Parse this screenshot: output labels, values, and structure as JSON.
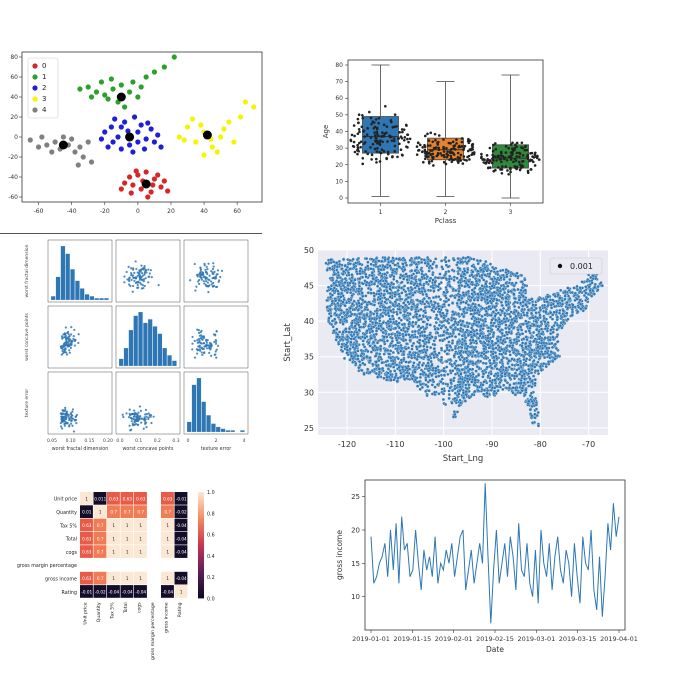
{
  "chart_data": [
    {
      "type": "scatter",
      "panel": "kmeans-clusters",
      "xlim": [
        -70,
        75
      ],
      "ylim": [
        -65,
        85
      ],
      "xticks": [
        -60,
        -40,
        -20,
        0,
        20,
        40,
        60
      ],
      "yticks": [
        -60,
        -40,
        -20,
        0,
        20,
        40,
        60,
        80
      ],
      "xtick_labels": [
        "-60",
        "-40",
        "-20",
        "0",
        "20",
        "40",
        "60"
      ],
      "ytick_labels": [
        "-60",
        "-40",
        "-20",
        "0",
        "20",
        "40",
        "60",
        "80"
      ],
      "legend_position": "top-left",
      "series": [
        {
          "name": "0",
          "color": "#d62728",
          "center": [
            5,
            -47
          ],
          "points": [
            [
              -5,
              -40
            ],
            [
              0,
              -38
            ],
            [
              5,
              -35
            ],
            [
              10,
              -42
            ],
            [
              -3,
              -48
            ],
            [
              8,
              -55
            ],
            [
              14,
              -50
            ],
            [
              -8,
              -46
            ],
            [
              2,
              -52
            ],
            [
              12,
              -38
            ],
            [
              -4,
              -56
            ],
            [
              16,
              -44
            ],
            [
              6,
              -60
            ],
            [
              -10,
              -52
            ],
            [
              9,
              -48
            ],
            [
              3,
              -44
            ],
            [
              18,
              -54
            ],
            [
              -1,
              -34
            ]
          ]
        },
        {
          "name": "1",
          "color": "#2ca02c",
          "center": [
            -10,
            40
          ],
          "points": [
            [
              -30,
              50
            ],
            [
              -25,
              45
            ],
            [
              -20,
              42
            ],
            [
              -15,
              48
            ],
            [
              -10,
              52
            ],
            [
              -5,
              45
            ],
            [
              0,
              40
            ],
            [
              -18,
              38
            ],
            [
              -28,
              40
            ],
            [
              -12,
              35
            ],
            [
              -8,
              30
            ],
            [
              -3,
              55
            ],
            [
              5,
              60
            ],
            [
              10,
              65
            ],
            [
              -22,
              55
            ],
            [
              -35,
              48
            ],
            [
              22,
              80
            ],
            [
              16,
              70
            ],
            [
              -16,
              58
            ],
            [
              2,
              50
            ]
          ]
        },
        {
          "name": "2",
          "color": "#1f1fd6",
          "center": [
            -5,
            0
          ],
          "points": [
            [
              -20,
              5
            ],
            [
              -15,
              -5
            ],
            [
              -10,
              10
            ],
            [
              -5,
              -8
            ],
            [
              0,
              5
            ],
            [
              5,
              -2
            ],
            [
              -12,
              0
            ],
            [
              -8,
              15
            ],
            [
              2,
              12
            ],
            [
              -18,
              -10
            ],
            [
              8,
              8
            ],
            [
              -3,
              -15
            ],
            [
              10,
              -5
            ],
            [
              -22,
              -2
            ],
            [
              4,
              -12
            ],
            [
              -14,
              18
            ],
            [
              12,
              2
            ],
            [
              -6,
              6
            ],
            [
              0,
              -5
            ],
            [
              -10,
              -12
            ],
            [
              6,
              14
            ],
            [
              -16,
              10
            ],
            [
              -2,
              20
            ],
            [
              14,
              -10
            ]
          ]
        },
        {
          "name": "3",
          "color": "#f5f500",
          "center": [
            42,
            2
          ],
          "points": [
            [
              30,
              10
            ],
            [
              35,
              -5
            ],
            [
              40,
              5
            ],
            [
              45,
              -10
            ],
            [
              50,
              0
            ],
            [
              55,
              15
            ],
            [
              28,
              -3
            ],
            [
              38,
              12
            ],
            [
              48,
              -15
            ],
            [
              58,
              -5
            ],
            [
              62,
              20
            ],
            [
              70,
              30
            ],
            [
              33,
              18
            ],
            [
              44,
              -2
            ],
            [
              52,
              8
            ],
            [
              25,
              0
            ],
            [
              65,
              35
            ],
            [
              40,
              -18
            ]
          ]
        },
        {
          "name": "4",
          "color": "#808080",
          "center": [
            -45,
            -8
          ],
          "points": [
            [
              -65,
              -3
            ],
            [
              -58,
              0
            ],
            [
              -55,
              -8
            ],
            [
              -50,
              -5
            ],
            [
              -47,
              -12
            ],
            [
              -42,
              -8
            ],
            [
              -38,
              -15
            ],
            [
              -35,
              -10
            ],
            [
              -30,
              -5
            ],
            [
              -33,
              -20
            ],
            [
              -40,
              -2
            ],
            [
              -52,
              -15
            ],
            [
              -60,
              -10
            ],
            [
              -45,
              0
            ],
            [
              -28,
              -25
            ],
            [
              -36,
              -28
            ]
          ]
        }
      ]
    },
    {
      "type": "box",
      "panel": "age-by-pclass",
      "xlabel": "Pclass",
      "ylabel": "Age",
      "categories": [
        "1",
        "2",
        "3"
      ],
      "yticks": [
        0,
        10,
        20,
        30,
        40,
        50,
        60,
        70,
        80
      ],
      "ylim": [
        -3,
        83
      ],
      "boxes": [
        {
          "category": "1",
          "color": "#2e77b4",
          "whisker_low": 1,
          "q1": 27,
          "median": 37,
          "q3": 49,
          "whisker_high": 80
        },
        {
          "category": "2",
          "color": "#e6832a",
          "whisker_low": 1,
          "q1": 23,
          "median": 29,
          "q3": 36,
          "whisker_high": 70
        },
        {
          "category": "3",
          "color": "#2f8a3a",
          "whisker_low": 0,
          "q1": 18,
          "median": 24,
          "q3": 32,
          "whisker_high": 74
        }
      ]
    },
    {
      "type": "pairplot",
      "panel": "feature-pairplot",
      "variables": [
        "worst fractal dimension",
        "worst concave points",
        "texture error"
      ],
      "tick_labels": {
        "x0": [
          "0.05",
          "0.10",
          "0.15",
          "0.20"
        ],
        "x1": [
          "0.0",
          "0.1",
          "0.2",
          "0.3"
        ],
        "x2": [
          "0",
          "2",
          "4"
        ]
      },
      "color": "#2e77b4",
      "histograms": [
        [
          2,
          12,
          28,
          24,
          16,
          10,
          6,
          3,
          2,
          1,
          1,
          1
        ],
        [
          4,
          10,
          20,
          28,
          30,
          24,
          26,
          22,
          18,
          10,
          6,
          3
        ],
        [
          6,
          28,
          32,
          18,
          10,
          5,
          3,
          2,
          1,
          1,
          0,
          1
        ]
      ]
    },
    {
      "type": "scatter",
      "panel": "us-locations",
      "xlabel": "Start_Lng",
      "ylabel": "Start_Lat",
      "xlim": [
        -126,
        -66
      ],
      "ylim": [
        24,
        50
      ],
      "xticks": [
        -120,
        -110,
        -100,
        -90,
        -80,
        -70
      ],
      "xtick_labels": [
        "-120",
        "-110",
        "-100",
        "-90",
        "-80",
        "-70"
      ],
      "yticks": [
        25,
        30,
        35,
        40,
        45,
        50
      ],
      "ytick_labels": [
        "25",
        "30",
        "35",
        "40",
        "45",
        "50"
      ],
      "legend_position": "top-right",
      "series": [
        {
          "name": "0.001",
          "color": "#2e77b4"
        }
      ],
      "grid": true,
      "point_count": 4500
    },
    {
      "type": "heatmap",
      "panel": "correlation-heatmap",
      "row_labels": [
        "Unit price",
        "Quantity",
        "Tax 5%",
        "Total",
        "cogs",
        "gross margin percentage",
        "gross income",
        "Rating"
      ],
      "col_labels": [
        "Unit price",
        "Quantity",
        "Tax 5%",
        "Total",
        "cogs",
        "gross margin percentage",
        "gross income",
        "Rating"
      ],
      "cell_text": [
        [
          "1",
          "0.011",
          "0.63",
          "0.63",
          "0.63",
          "",
          "0.63",
          "-0.01"
        ],
        [
          "0.01",
          "1",
          "0.7",
          "0.7",
          "0.7",
          "",
          "0.7",
          "-0.02"
        ],
        [
          "0.63",
          "0.7",
          "1",
          "1",
          "1",
          "",
          "1",
          "-0.04"
        ],
        [
          "0.63",
          "0.7",
          "1",
          "1",
          "1",
          "",
          "1",
          "-0.04"
        ],
        [
          "0.63",
          "0.7",
          "1",
          "1",
          "1",
          "",
          "1",
          "-0.04"
        ],
        [
          "",
          "",
          "",
          "",
          "",
          "",
          "",
          ""
        ],
        [
          "0.63",
          "0.7",
          "1",
          "1",
          "1",
          "",
          "1",
          "-0.04"
        ],
        [
          "-0.01",
          "-0.02",
          "-0.04",
          "-0.04",
          "-0.04",
          "",
          "-0.04",
          "1"
        ]
      ],
      "colorbar_ticks": [
        "1.0",
        "0.8",
        "0.6",
        "0.4",
        "0.2",
        "0.0"
      ]
    },
    {
      "type": "line",
      "panel": "gross-income-time-series",
      "xlabel": "Date",
      "ylabel": "gross income",
      "xtick_labels": [
        "2019-01-01",
        "2019-01-15",
        "2019-02-01",
        "2019-02-15",
        "2019-03-01",
        "2019-03-15",
        "2019-04-01"
      ],
      "yticks": [
        10,
        15,
        20,
        25
      ],
      "ylim": [
        5,
        27.5
      ],
      "color": "#2e77b4",
      "values": [
        19,
        12,
        13,
        15,
        16,
        18,
        13,
        20,
        14,
        21,
        12,
        22,
        17,
        18,
        13,
        14,
        20,
        15,
        11,
        17,
        14,
        16,
        13,
        19,
        12,
        15,
        14,
        17,
        15,
        18,
        13,
        16,
        19,
        20,
        11,
        14,
        17,
        12,
        15,
        18,
        15,
        27,
        16,
        6,
        14,
        20,
        12,
        15,
        18,
        13,
        19,
        16,
        11,
        21,
        14,
        13,
        18,
        12,
        10,
        17,
        9,
        20,
        15,
        13,
        18,
        11,
        16,
        19,
        14,
        12,
        17,
        15,
        10,
        18,
        13,
        9,
        19,
        15,
        14,
        20,
        11,
        8,
        16,
        7,
        13,
        21,
        17,
        24,
        19,
        22
      ]
    }
  ]
}
